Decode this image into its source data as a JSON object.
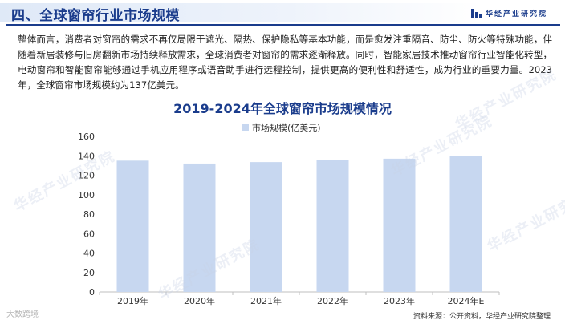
{
  "header": {
    "title": "四、全球窗帘行业市场规模",
    "brand": "华经产业研究院"
  },
  "intro": "整体而言，消费者对窗帘的需求不再仅局限于遮光、隔热、保护隐私等基本功能，而是愈发注重隔音、防尘、防火等特殊功能，伴随着新居装修与旧房翻新市场持续释放需求，全球消费者对窗帘的需求逐渐释放。同时，智能家居技术推动窗帘行业智能化转型，电动窗帘和智能窗帘能够通过手机应用程序或语音助手进行远程控制，提供更高的便利性和舒适性，成为行业的重要力量。2023年，全球窗帘市场规模约为137亿美元。",
  "chart_data": {
    "type": "bar",
    "title": "2019-2024年全球窗帘市场规模情况",
    "categories": [
      "2019年",
      "2020年",
      "2021年",
      "2022年",
      "2023年",
      "2024年E"
    ],
    "series": [
      {
        "name": "市场规模(亿美元)",
        "values": [
          135,
          132,
          133.5,
          136,
          137,
          139.5
        ]
      }
    ],
    "ylim": [
      0,
      160
    ],
    "yticks": [
      0,
      20,
      40,
      60,
      80,
      100,
      120,
      140,
      160
    ],
    "grid": false,
    "legend": "top-center",
    "bar_color": "#c7d7f0"
  },
  "source": "资料来源：公开资料，华经产业研究院整理",
  "watermark": "华经产业研究院",
  "footer_mark": "大数跨境"
}
